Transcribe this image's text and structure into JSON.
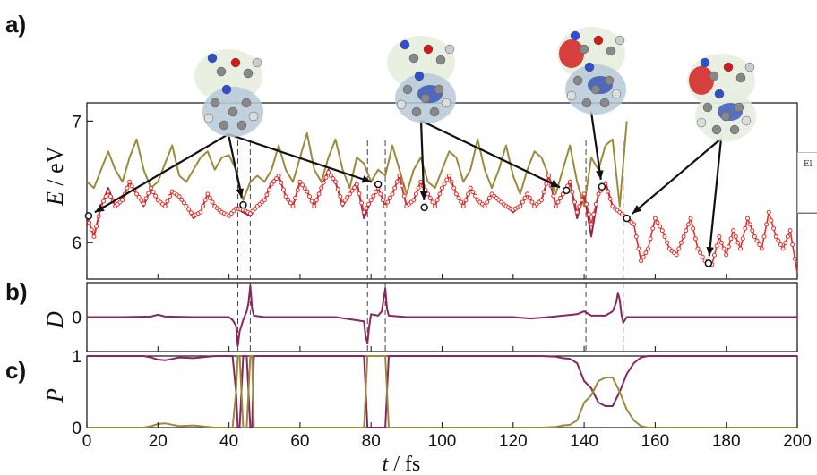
{
  "panel_labels": {
    "a": "a)",
    "b": "b)",
    "c": "c)"
  },
  "y_labels": {
    "a_var": "E",
    "a_unit": " / eV",
    "b": "D",
    "c": "P"
  },
  "x_label": {
    "var": "t",
    "unit": " / fs"
  },
  "legend_text": "El",
  "colors": {
    "red": "#e0302a",
    "purple": "#8b2560",
    "olive": "#9a8a3c",
    "marker": "#e0302a"
  },
  "chart_data": [
    {
      "panel": "a",
      "type": "line",
      "xlim": [
        0,
        200
      ],
      "ylim": [
        5.7,
        7.15
      ],
      "yticks": [
        6,
        7
      ],
      "vlines": [
        42.5,
        46,
        79,
        84,
        140.5,
        151
      ],
      "series": [
        {
          "color": "olive",
          "x": [
            0,
            2,
            4,
            6,
            8,
            10,
            12,
            14,
            16,
            18,
            20,
            22,
            24,
            26,
            28,
            30,
            32,
            34,
            36,
            38,
            40,
            42,
            44,
            46,
            48,
            50,
            52,
            54,
            56,
            58,
            60,
            62,
            64,
            66,
            68,
            70,
            72,
            74,
            76,
            78,
            80,
            82,
            84,
            86,
            88,
            90,
            92,
            94,
            96,
            98,
            100,
            102,
            104,
            106,
            108,
            110,
            112,
            114,
            116,
            118,
            120,
            122,
            124,
            126,
            128,
            130,
            132,
            134,
            136,
            138,
            140,
            142,
            144,
            146,
            148,
            150,
            152
          ],
          "y": [
            6.5,
            6.45,
            6.6,
            6.75,
            6.6,
            6.5,
            6.7,
            6.85,
            6.6,
            6.45,
            6.5,
            6.65,
            6.8,
            6.55,
            6.5,
            6.6,
            6.7,
            6.75,
            6.6,
            6.7,
            6.72,
            6.6,
            6.35,
            6.5,
            6.55,
            6.5,
            6.6,
            6.8,
            6.6,
            6.5,
            6.7,
            6.9,
            6.6,
            6.5,
            6.7,
            6.85,
            6.6,
            6.45,
            6.7,
            6.65,
            6.5,
            6.6,
            6.55,
            6.8,
            6.6,
            6.4,
            6.6,
            6.7,
            6.5,
            6.45,
            6.6,
            6.75,
            6.7,
            6.5,
            6.6,
            6.85,
            6.6,
            6.45,
            6.6,
            6.8,
            6.55,
            6.4,
            6.6,
            6.75,
            6.7,
            6.55,
            6.4,
            6.6,
            6.8,
            6.5,
            6.3,
            6.7,
            6.6,
            6.8,
            6.85,
            6.3,
            7.0
          ]
        },
        {
          "color": "purple",
          "x": [
            0,
            2,
            4,
            6,
            8,
            10,
            12,
            14,
            16,
            18,
            20,
            22,
            24,
            26,
            28,
            30,
            32,
            34,
            36,
            38,
            40,
            42,
            44,
            46,
            48,
            50,
            52,
            54,
            56,
            58,
            60,
            62,
            64,
            66,
            68,
            70,
            72,
            74,
            76,
            78,
            80,
            82,
            84,
            86,
            88,
            90,
            92,
            94,
            96,
            98,
            100,
            102,
            104,
            106,
            108,
            110,
            112,
            114,
            116,
            118,
            120,
            122,
            124,
            126,
            128,
            130,
            132,
            134,
            136,
            138,
            140,
            142,
            144,
            146,
            148,
            150,
            152
          ],
          "y": [
            6.22,
            6.05,
            6.3,
            6.45,
            6.3,
            6.35,
            6.5,
            6.4,
            6.3,
            6.45,
            6.35,
            6.3,
            6.42,
            6.38,
            6.3,
            6.2,
            6.25,
            6.4,
            6.3,
            6.25,
            6.22,
            6.28,
            6.25,
            6.22,
            6.3,
            6.35,
            6.5,
            6.55,
            6.38,
            6.3,
            6.5,
            6.42,
            6.3,
            6.45,
            6.6,
            6.5,
            6.3,
            6.4,
            6.5,
            6.2,
            6.35,
            6.45,
            6.3,
            6.4,
            6.55,
            6.3,
            6.35,
            6.5,
            6.4,
            6.3,
            6.45,
            6.55,
            6.4,
            6.3,
            6.45,
            6.35,
            6.3,
            6.4,
            6.35,
            6.3,
            6.25,
            6.3,
            6.4,
            6.3,
            6.35,
            6.55,
            6.3,
            6.4,
            6.5,
            6.2,
            6.4,
            6.05,
            6.4,
            6.5,
            6.3,
            6.25,
            6.2
          ]
        },
        {
          "color": "red",
          "markers": true,
          "x": [
            0,
            2,
            4,
            6,
            8,
            10,
            12,
            14,
            16,
            18,
            20,
            22,
            24,
            26,
            28,
            30,
            32,
            34,
            36,
            38,
            40,
            42,
            44,
            46,
            48,
            50,
            52,
            54,
            56,
            58,
            60,
            62,
            64,
            66,
            68,
            70,
            72,
            74,
            76,
            78,
            80,
            82,
            84,
            86,
            88,
            90,
            92,
            94,
            96,
            98,
            100,
            102,
            104,
            106,
            108,
            110,
            112,
            114,
            116,
            118,
            120,
            122,
            124,
            126,
            128,
            130,
            132,
            134,
            136,
            138,
            140,
            142,
            144,
            146,
            148,
            150,
            152,
            154,
            156,
            158,
            160,
            162,
            164,
            166,
            168,
            170,
            172,
            174,
            176,
            178,
            180,
            182,
            184,
            186,
            188,
            190,
            192,
            194,
            196,
            198,
            200
          ],
          "y": [
            6.22,
            6.05,
            6.3,
            6.42,
            6.3,
            6.35,
            6.5,
            6.4,
            6.32,
            6.45,
            6.35,
            6.3,
            6.42,
            6.38,
            6.3,
            6.22,
            6.25,
            6.4,
            6.3,
            6.25,
            6.22,
            6.28,
            6.27,
            6.24,
            6.3,
            6.35,
            6.48,
            6.55,
            6.38,
            6.3,
            6.5,
            6.42,
            6.3,
            6.45,
            6.58,
            6.5,
            6.32,
            6.4,
            6.48,
            6.25,
            6.35,
            6.45,
            6.3,
            6.4,
            6.55,
            6.3,
            6.35,
            6.5,
            6.4,
            6.3,
            6.45,
            6.55,
            6.4,
            6.3,
            6.45,
            6.35,
            6.3,
            6.4,
            6.35,
            6.3,
            6.27,
            6.3,
            6.4,
            6.3,
            6.35,
            6.55,
            6.3,
            6.4,
            6.5,
            6.25,
            6.4,
            6.15,
            6.4,
            6.48,
            6.3,
            6.25,
            6.2,
            6.15,
            5.85,
            5.95,
            6.2,
            6.1,
            5.95,
            5.9,
            6.05,
            6.2,
            5.95,
            5.85,
            5.82,
            6.05,
            5.9,
            6.1,
            5.95,
            6.2,
            6.05,
            5.95,
            6.25,
            6.05,
            5.95,
            6.1,
            5.75
          ]
        }
      ],
      "marked_points": [
        {
          "x": 0.5,
          "y": 6.22
        },
        {
          "x": 44,
          "y": 6.31
        },
        {
          "x": 82,
          "y": 6.48
        },
        {
          "x": 95,
          "y": 6.29
        },
        {
          "x": 135,
          "y": 6.43
        },
        {
          "x": 145,
          "y": 6.46
        },
        {
          "x": 152,
          "y": 6.2
        },
        {
          "x": 175,
          "y": 5.83
        }
      ],
      "molecules": 4
    },
    {
      "panel": "b",
      "type": "line",
      "xlim": [
        0,
        200
      ],
      "ylim": [
        -1.2,
        1.2
      ],
      "yticks": [
        0
      ],
      "vlines": [
        42.5,
        46,
        79,
        84,
        140.5,
        151
      ],
      "series": [
        {
          "color": "purple",
          "x": [
            0,
            10,
            18,
            20,
            22,
            30,
            40,
            41,
            42,
            42.5,
            43,
            44,
            45,
            45.5,
            46,
            46.5,
            47,
            50,
            60,
            70,
            78,
            78.5,
            79,
            79.5,
            80,
            82,
            83,
            83.5,
            84,
            84.5,
            85,
            90,
            100,
            110,
            120,
            125,
            130,
            138,
            140,
            142,
            146,
            148,
            149,
            149.5,
            150,
            150.5,
            151,
            152,
            160,
            200
          ],
          "y": [
            0,
            0,
            0.02,
            0.08,
            0.02,
            0,
            0,
            -0.1,
            -0.3,
            -1.0,
            -0.5,
            -0.1,
            0.2,
            0.5,
            1.1,
            0.3,
            0.05,
            0,
            0,
            0,
            -0.15,
            -0.7,
            -0.9,
            -0.3,
            0.1,
            0.05,
            0.2,
            0.6,
            1.0,
            0.3,
            0.05,
            0,
            0,
            0,
            0,
            -0.05,
            0,
            0.1,
            0.2,
            0.05,
            0.05,
            0.2,
            0.5,
            0.85,
            0.6,
            0.1,
            -0.2,
            0,
            0,
            0
          ]
        }
      ]
    },
    {
      "panel": "c",
      "type": "line",
      "xlim": [
        0,
        200
      ],
      "ylim": [
        0,
        1
      ],
      "yticks": [
        0,
        1
      ],
      "vlines": [],
      "series": [
        {
          "color": "purple",
          "x": [
            0,
            16,
            18,
            20,
            22,
            24,
            26,
            30,
            36,
            41,
            42,
            42.5,
            43,
            44,
            45,
            45.5,
            46,
            46.5,
            47,
            60,
            78,
            78.5,
            79,
            84,
            84.5,
            85,
            100,
            120,
            128,
            132,
            134,
            136,
            138,
            140,
            142,
            144,
            146,
            148,
            150,
            152,
            154,
            156,
            158,
            200
          ],
          "y": [
            1,
            1,
            0.98,
            0.95,
            0.94,
            0.96,
            0.98,
            0.97,
            1,
            1,
            0.5,
            0,
            0,
            1,
            1,
            0.5,
            0,
            0,
            1,
            1,
            1,
            0.5,
            0,
            0,
            0.5,
            1,
            1,
            1,
            1,
            0.99,
            0.97,
            0.96,
            0.9,
            0.65,
            0.55,
            0.35,
            0.3,
            0.3,
            0.5,
            0.75,
            0.9,
            0.98,
            1,
            1
          ]
        },
        {
          "color": "olive",
          "x": [
            0,
            16,
            18,
            20,
            22,
            24,
            26,
            30,
            36,
            41,
            42,
            42.5,
            43,
            44,
            45,
            45.5,
            46,
            46.5,
            47,
            60,
            78,
            78.5,
            79,
            84,
            84.5,
            85,
            100,
            120,
            128,
            132,
            134,
            136,
            138,
            140,
            142,
            144,
            146,
            148,
            150,
            152,
            154,
            156,
            158,
            200
          ],
          "y": [
            0,
            0,
            0.02,
            0.05,
            0.06,
            0.04,
            0.02,
            0.03,
            0,
            0,
            0.5,
            1,
            1,
            0,
            0,
            0.5,
            1,
            1,
            0,
            0,
            0,
            0.5,
            1,
            1,
            0.5,
            0,
            0,
            0,
            0,
            0.01,
            0.03,
            0.04,
            0.1,
            0.35,
            0.45,
            0.65,
            0.7,
            0.7,
            0.5,
            0.25,
            0.1,
            0.02,
            0,
            0
          ]
        }
      ]
    }
  ],
  "x_axis": {
    "ticks": [
      0,
      20,
      40,
      60,
      80,
      100,
      120,
      140,
      160,
      180,
      200
    ]
  }
}
